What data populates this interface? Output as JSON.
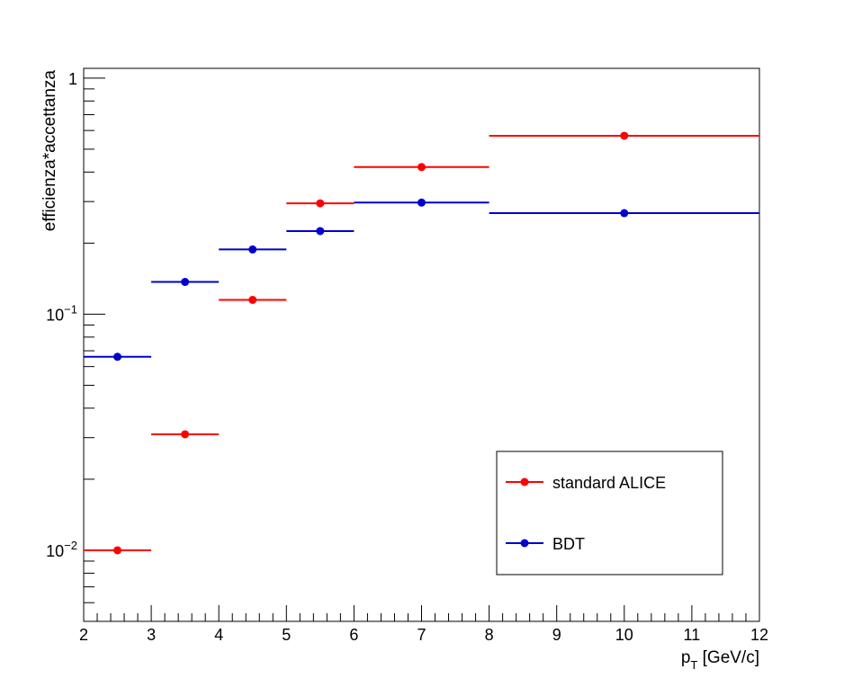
{
  "chart_data": {
    "type": "scatter",
    "title": "",
    "xlabel": "p",
    "xlabel_subscript": "T",
    "xlabel_unit": " [GeV/c]",
    "ylabel": "efficienza*accettanza",
    "xlim": [
      2,
      12
    ],
    "ylim": [
      0.005,
      1.1
    ],
    "y_scale": "log",
    "grid": false,
    "legend_position": "bottom-right",
    "x_tick_labels": [
      "2",
      "3",
      "4",
      "5",
      "6",
      "7",
      "8",
      "9",
      "10",
      "11",
      "12"
    ],
    "y_tick_labels": [
      {
        "base": "10",
        "exp": "−2"
      },
      {
        "base": "10",
        "exp": "−1"
      },
      {
        "base": "1",
        "exp": ""
      }
    ],
    "series": [
      {
        "name": "standard ALICE",
        "color": "#ff0000",
        "points": [
          {
            "x": 2.5,
            "xlow": 2,
            "xhigh": 3,
            "y": 0.01
          },
          {
            "x": 3.5,
            "xlow": 3,
            "xhigh": 4,
            "y": 0.031
          },
          {
            "x": 4.5,
            "xlow": 4,
            "xhigh": 5,
            "y": 0.115
          },
          {
            "x": 5.5,
            "xlow": 5,
            "xhigh": 6,
            "y": 0.295
          },
          {
            "x": 7.0,
            "xlow": 6,
            "xhigh": 8,
            "y": 0.42
          },
          {
            "x": 10.0,
            "xlow": 8,
            "xhigh": 12,
            "y": 0.57
          }
        ]
      },
      {
        "name": "BDT",
        "color": "#0000cc",
        "points": [
          {
            "x": 2.5,
            "xlow": 2,
            "xhigh": 3,
            "y": 0.066
          },
          {
            "x": 3.5,
            "xlow": 3,
            "xhigh": 4,
            "y": 0.137
          },
          {
            "x": 4.5,
            "xlow": 4,
            "xhigh": 5,
            "y": 0.188
          },
          {
            "x": 5.5,
            "xlow": 5,
            "xhigh": 6,
            "y": 0.225
          },
          {
            "x": 7.0,
            "xlow": 6,
            "xhigh": 8,
            "y": 0.297
          },
          {
            "x": 10.0,
            "xlow": 8,
            "xhigh": 12,
            "y": 0.268
          }
        ]
      }
    ]
  }
}
